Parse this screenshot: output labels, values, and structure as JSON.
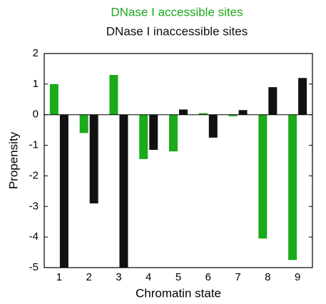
{
  "chart_data": {
    "type": "bar",
    "x_label": "Chromatin state",
    "y_label": "Propensity",
    "categories": [
      "1",
      "2",
      "3",
      "4",
      "5",
      "6",
      "7",
      "8",
      "9"
    ],
    "series": [
      {
        "name": "DNase I accessible sites",
        "color": "#1aaa1a",
        "values": [
          1.0,
          -0.6,
          1.3,
          -1.45,
          -1.2,
          0.05,
          -0.05,
          -4.05,
          -4.75
        ]
      },
      {
        "name": "DNase I inaccessible sites",
        "color": "#111111",
        "values": [
          -5,
          -2.9,
          -5,
          -1.15,
          0.17,
          -0.75,
          0.15,
          0.9,
          1.2
        ]
      }
    ],
    "ylim": [
      -5,
      2
    ],
    "yticks": [
      -5,
      -4,
      -3,
      -2,
      -1,
      0,
      1,
      2
    ],
    "legend": "top"
  }
}
